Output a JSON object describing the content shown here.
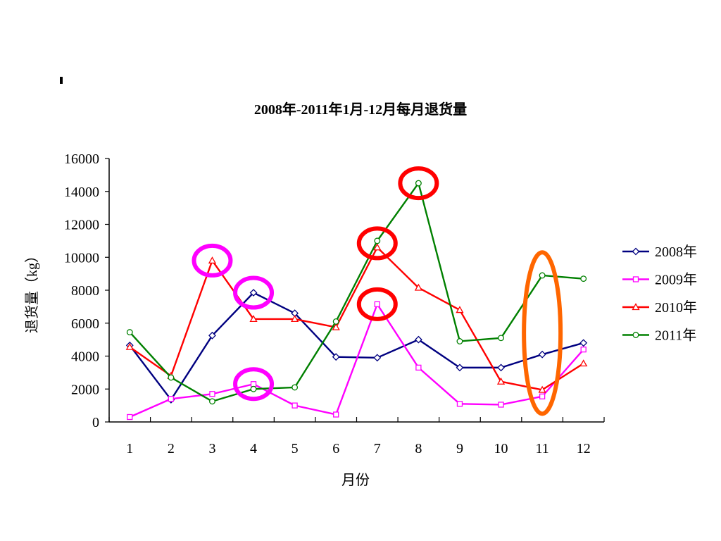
{
  "chart_data": {
    "type": "line",
    "title": "2008年-2011年1月-12月每月退货量",
    "xlabel": "月份",
    "ylabel": "退货量（kg）",
    "categories": [
      "1",
      "2",
      "3",
      "4",
      "5",
      "6",
      "7",
      "8",
      "9",
      "10",
      "11",
      "12"
    ],
    "ylim": [
      0,
      16000
    ],
    "yticks": [
      0,
      2000,
      4000,
      6000,
      8000,
      10000,
      12000,
      14000,
      16000
    ],
    "grid": false,
    "legend": "right",
    "series": [
      {
        "name": "2008年",
        "color": "#000080",
        "marker": "diamond",
        "values": [
          4650,
          1350,
          5250,
          7850,
          6600,
          3950,
          3900,
          5000,
          3300,
          3300,
          4100,
          4800
        ]
      },
      {
        "name": "2009年",
        "color": "#FF00FF",
        "marker": "square",
        "values": [
          300,
          1400,
          1700,
          2300,
          1000,
          450,
          7150,
          3300,
          1100,
          1050,
          1550,
          4400
        ]
      },
      {
        "name": "2010年",
        "color": "#FF0000",
        "marker": "triangle",
        "values": [
          4550,
          2800,
          9800,
          6250,
          6250,
          5750,
          10600,
          8150,
          6800,
          2450,
          1950,
          3550
        ]
      },
      {
        "name": "2011年",
        "color": "#008000",
        "marker": "circle",
        "values": [
          5450,
          2700,
          1250,
          2000,
          2100,
          6100,
          11000,
          14500,
          4900,
          5100,
          8900,
          8700
        ]
      }
    ],
    "annotations": [
      {
        "shape": "circle",
        "color": "#FF00FF",
        "x": 3,
        "y": 9800
      },
      {
        "shape": "circle",
        "color": "#FF00FF",
        "x": 4,
        "y": 7850
      },
      {
        "shape": "circle",
        "color": "#FF00FF",
        "x": 4,
        "y": 2300
      },
      {
        "shape": "circle",
        "color": "#FF0000",
        "x": 7,
        "y": 10850
      },
      {
        "shape": "circle",
        "color": "#FF0000",
        "x": 7,
        "y": 7150
      },
      {
        "shape": "circle",
        "color": "#FF0000",
        "x": 8,
        "y": 14500
      },
      {
        "shape": "ellipse",
        "color": "#FF6600",
        "x": 11,
        "y": 5200,
        "ymin": 500,
        "ymax": 10300
      }
    ]
  }
}
